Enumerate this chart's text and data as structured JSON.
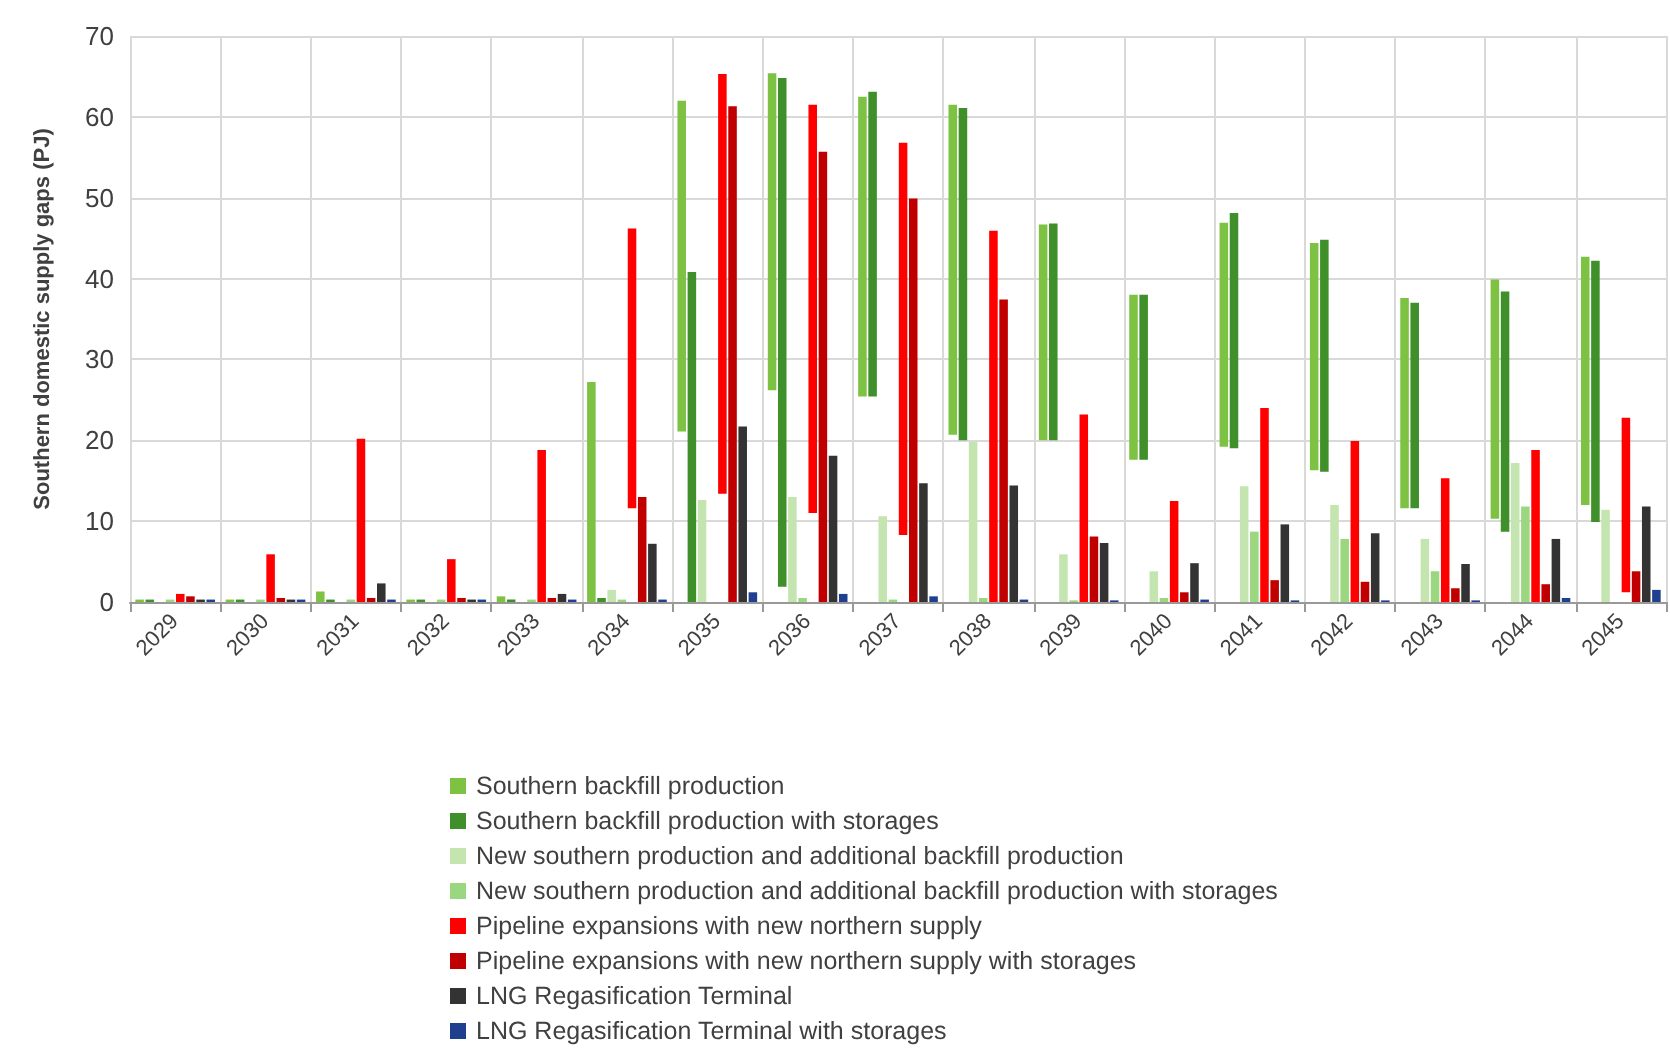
{
  "chart_data": {
    "type": "bar",
    "ylabel": "Southern domestic supply gaps (PJ)",
    "categories": [
      "2029",
      "2030",
      "2031",
      "2032",
      "2033",
      "2034",
      "2035",
      "2036",
      "2037",
      "2038",
      "2039",
      "2040",
      "2041",
      "2042",
      "2043",
      "2044",
      "2045"
    ],
    "ylim": [
      0,
      70
    ],
    "yticks": [
      0,
      10,
      20,
      30,
      40,
      50,
      60,
      70
    ],
    "grid": true,
    "legend": "bottom",
    "series": [
      {
        "name": "Southern backfill production",
        "color": "#7dc242",
        "values": [
          0.3,
          0.3,
          1.3,
          0.3,
          0.7,
          27.2,
          40.9,
          39.2,
          37.1,
          40.8,
          26.7,
          20.4,
          27.7,
          28.1,
          26.0,
          29.6,
          30.7
        ],
        "base": [
          0,
          0,
          0,
          0,
          0,
          0,
          21.1,
          26.2,
          25.4,
          20.7,
          20.0,
          17.6,
          19.2,
          16.3,
          11.6,
          10.3,
          12.0
        ]
      },
      {
        "name": "Southern backfill production with storages",
        "color": "#3f8f2a",
        "values": [
          0.3,
          0.3,
          0.3,
          0.3,
          0.3,
          0.5,
          40.8,
          62.9,
          37.7,
          41.1,
          26.8,
          20.4,
          29.1,
          28.7,
          25.4,
          29.7,
          32.3
        ],
        "base": [
          0,
          0,
          0,
          0,
          0,
          0,
          0,
          1.9,
          25.4,
          20,
          20,
          17.6,
          19,
          16.1,
          11.6,
          8.7,
          9.9
        ]
      },
      {
        "name": "New southern production and additional backfill production",
        "color": "#c5e5b0",
        "values": [
          null,
          null,
          null,
          null,
          null,
          1.5,
          12.6,
          13.0,
          10.6,
          19.8,
          5.9,
          3.8,
          14.3,
          12.0,
          7.8,
          17.2,
          11.4
        ]
      },
      {
        "name": "New southern production and additional backfill production with storages",
        "color": "#9ad77e",
        "values": [
          0.3,
          0.3,
          0.3,
          0.3,
          0.3,
          0.3,
          null,
          0.5,
          0.3,
          0.5,
          0.2,
          0.5,
          8.7,
          7.8,
          3.8,
          11.8,
          null
        ]
      },
      {
        "name": "Pipeline expansions with new northern supply",
        "color": "#ff0000",
        "values": [
          1.0,
          5.9,
          20.2,
          5.3,
          18.8,
          34.6,
          51.9,
          50.5,
          48.5,
          45.9,
          23.2,
          12.5,
          24.0,
          19.9,
          15.3,
          18.8,
          21.6
        ],
        "base": [
          0,
          0,
          0,
          0,
          0,
          11.6,
          13.4,
          11.0,
          8.3,
          0,
          0,
          0,
          0,
          0,
          0,
          0,
          1.2
        ]
      },
      {
        "name": "Pipeline expansions with new northern supply with storages",
        "color": "#c00000",
        "values": [
          0.7,
          0.5,
          0.5,
          0.5,
          0.5,
          13.0,
          61.3,
          55.7,
          49.9,
          37.4,
          8.1,
          1.2,
          2.7,
          2.5,
          1.7,
          2.2,
          3.8
        ]
      },
      {
        "name": "LNG Regasification Terminal",
        "color": "#333333",
        "values": [
          0.3,
          0.3,
          2.3,
          0.3,
          1.0,
          7.2,
          21.7,
          18.1,
          14.7,
          14.4,
          7.3,
          4.8,
          9.6,
          8.5,
          4.7,
          7.8,
          11.8
        ]
      },
      {
        "name": "LNG Regasification Terminal with storages",
        "color": "#1f3f8f",
        "values": [
          0.3,
          0.3,
          0.3,
          0.3,
          0.3,
          0.3,
          1.2,
          1.0,
          0.7,
          0.3,
          0.2,
          0.3,
          0.2,
          0.2,
          0.2,
          0.5,
          1.5
        ]
      }
    ]
  }
}
